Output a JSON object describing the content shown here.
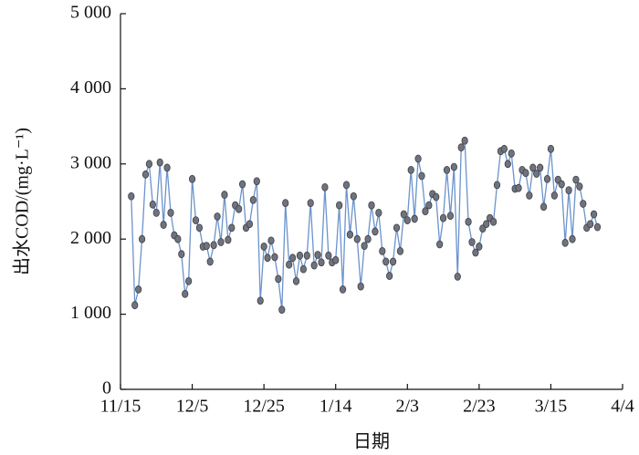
{
  "chart_data": {
    "type": "line",
    "y_label": "出水COD/(mg·L⁻¹)",
    "x_label": "日期",
    "x": [
      "11/18",
      "11/19",
      "11/20",
      "11/21",
      "11/22",
      "11/23",
      "11/24",
      "11/25",
      "11/26",
      "11/27",
      "11/28",
      "11/29",
      "11/30",
      "12/1",
      "12/2",
      "12/3",
      "12/4",
      "12/5",
      "12/6",
      "12/7",
      "12/8",
      "12/9",
      "12/10",
      "12/11",
      "12/12",
      "12/13",
      "12/14",
      "12/15",
      "12/16",
      "12/17",
      "12/18",
      "12/19",
      "12/20",
      "12/21",
      "12/22",
      "12/23",
      "12/24",
      "12/25",
      "12/26",
      "12/27",
      "12/28",
      "12/29",
      "12/30",
      "12/31",
      "1/1",
      "1/2",
      "1/3",
      "1/4",
      "1/5",
      "1/6",
      "1/7",
      "1/8",
      "1/9",
      "1/10",
      "1/11",
      "1/12",
      "1/13",
      "1/14",
      "1/15",
      "1/16",
      "1/17",
      "1/18",
      "1/19",
      "1/20",
      "1/21",
      "1/22",
      "1/23",
      "1/24",
      "1/25",
      "1/26",
      "1/27",
      "1/28",
      "1/29",
      "1/30",
      "1/31",
      "2/1",
      "2/2",
      "2/3",
      "2/4",
      "2/5",
      "2/6",
      "2/7",
      "2/8",
      "2/9",
      "2/10",
      "2/11",
      "2/12",
      "2/13",
      "2/14",
      "2/15",
      "2/16",
      "2/17",
      "2/18",
      "2/19",
      "2/20",
      "2/21",
      "2/22",
      "2/23",
      "2/24",
      "2/25",
      "2/26",
      "2/27",
      "2/28",
      "3/1",
      "3/2",
      "3/3",
      "3/4",
      "3/5",
      "3/6",
      "3/7",
      "3/8",
      "3/9",
      "3/10",
      "3/11",
      "3/12",
      "3/13",
      "3/14",
      "3/15",
      "3/16",
      "3/17",
      "3/18",
      "3/19",
      "3/20",
      "3/21",
      "3/22",
      "3/23",
      "3/24",
      "3/25",
      "3/26",
      "3/27",
      "3/28"
    ],
    "values": [
      2570,
      1120,
      1330,
      2000,
      2860,
      3000,
      2460,
      2350,
      3020,
      2190,
      2950,
      2350,
      2050,
      2000,
      1800,
      1270,
      1440,
      2800,
      2250,
      2150,
      1900,
      1910,
      1700,
      1920,
      2300,
      1960,
      2590,
      1990,
      2150,
      2450,
      2400,
      2730,
      2150,
      2200,
      2520,
      2770,
      1180,
      1900,
      1750,
      1980,
      1760,
      1470,
      1060,
      2480,
      1660,
      1750,
      1440,
      1780,
      1600,
      1780,
      2480,
      1650,
      1790,
      1690,
      2690,
      1780,
      1690,
      1720,
      2450,
      1330,
      2720,
      2060,
      2570,
      2000,
      1370,
      1910,
      2000,
      2450,
      2100,
      2350,
      1840,
      1700,
      1510,
      1700,
      2150,
      1840,
      2330,
      2250,
      2920,
      2270,
      3070,
      2840,
      2370,
      2450,
      2600,
      2560,
      1930,
      2280,
      2920,
      2310,
      2960,
      1500,
      3220,
      3310,
      2230,
      1960,
      1820,
      1900,
      2140,
      2200,
      2280,
      2230,
      2720,
      3170,
      3200,
      3000,
      3140,
      2670,
      2680,
      2920,
      2880,
      2580,
      2950,
      2870,
      2950,
      2430,
      2800,
      3200,
      2580,
      2790,
      2730,
      1950,
      2650,
      2000,
      2790,
      2700,
      2470,
      2150,
      2200,
      2330,
      2160
    ],
    "color": "#6b93cc",
    "marker_color": "#70737d",
    "xlim": [
      "11/15",
      "4/4"
    ],
    "xticks": [
      "11/15",
      "12/5",
      "12/25",
      "1/14",
      "2/3",
      "2/23",
      "3/15",
      "4/4"
    ],
    "ylim": [
      0,
      5000
    ],
    "yticks": [
      0,
      {
        "value": 1000,
        "label": "1 000"
      },
      {
        "value": 2000,
        "label": "2 000"
      },
      {
        "value": 3000,
        "label": "3 000"
      },
      {
        "value": 4000,
        "label": "4 000"
      },
      {
        "value": 5000,
        "label": "5 000"
      }
    ]
  }
}
